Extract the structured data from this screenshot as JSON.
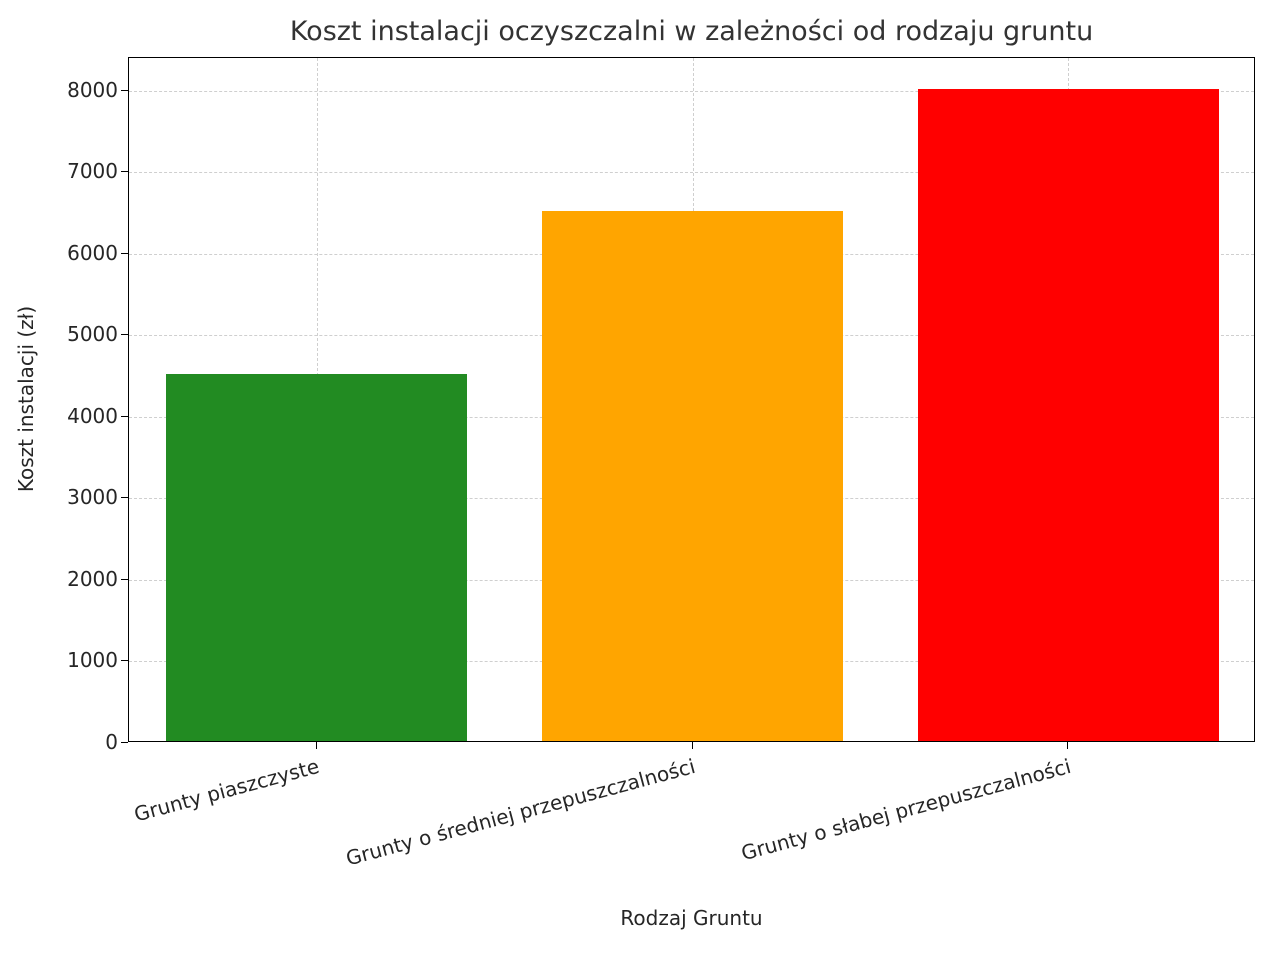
{
  "chart_data": {
    "type": "bar",
    "title": "Koszt instalacji oczyszczalni w zależności od rodzaju gruntu",
    "xlabel": "Rodzaj Gruntu",
    "ylabel": "Koszt instalacji (zł)",
    "categories": [
      "Grunty piaszczyste",
      "Grunty o średniej przepuszczalności",
      "Grunty o słabej przepuszczalności"
    ],
    "values": [
      4500,
      6500,
      8000
    ],
    "bar_colors": [
      "#228B22",
      "#FFA500",
      "#FF0000"
    ],
    "ylim": [
      0,
      8400
    ],
    "yticks": [
      0,
      1000,
      2000,
      3000,
      4000,
      5000,
      6000,
      7000,
      8000
    ],
    "grid": true,
    "grid_style": "dashed",
    "legend": "none",
    "background_color": "#ffffff"
  }
}
